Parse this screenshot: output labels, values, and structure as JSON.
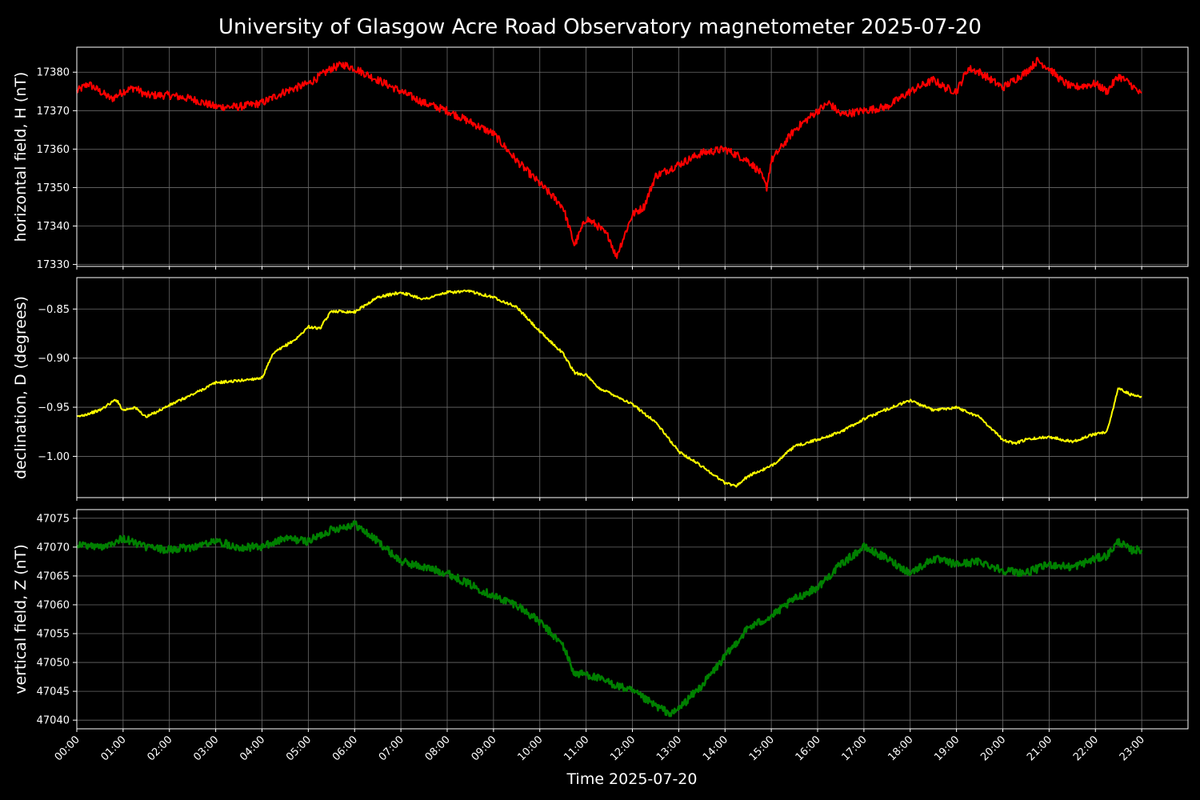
{
  "chart_data": {
    "type": "line",
    "title": "University of Glasgow Acre Road Observatory magnetometer 2025-07-20",
    "xlabel": "Time 2025-07-20",
    "x_tick_labels": [
      "00:00",
      "01:00",
      "02:00",
      "03:00",
      "04:00",
      "05:00",
      "06:00",
      "07:00",
      "08:00",
      "09:00",
      "10:00",
      "11:00",
      "12:00",
      "13:00",
      "14:00",
      "15:00",
      "16:00",
      "17:00",
      "18:00",
      "19:00",
      "20:00",
      "21:00",
      "22:00",
      "23:00"
    ],
    "x_range_hours": [
      0,
      24
    ],
    "grid": true,
    "background": "#000000",
    "panels": [
      {
        "ylabel": "horizontal field, H (nT)",
        "color": "#ff0000",
        "ylim": [
          17329.5,
          17386.5
        ],
        "yticks": [
          17330,
          17340,
          17350,
          17360,
          17370,
          17380
        ],
        "ytick_labels": [
          "17330",
          "17340",
          "17350",
          "17360",
          "17370",
          "17380"
        ],
        "x": [
          0,
          0.25,
          0.5,
          0.75,
          1,
          1.25,
          1.5,
          2,
          2.5,
          3,
          3.5,
          4,
          4.5,
          5,
          5.5,
          5.75,
          6,
          6.5,
          7,
          7.5,
          8,
          8.5,
          9,
          9.5,
          10,
          10.5,
          10.75,
          11,
          11.25,
          11.5,
          11.65,
          12,
          12.25,
          12.5,
          13,
          13.5,
          14,
          14.5,
          14.75,
          14.9,
          15,
          15.5,
          16,
          16.25,
          16.5,
          17,
          17.5,
          18,
          18.5,
          18.75,
          19,
          19.25,
          19.5,
          20,
          20.25,
          20.5,
          20.75,
          21,
          21.25,
          21.5,
          22,
          22.25,
          22.5,
          22.75,
          23
        ],
        "y": [
          17375,
          17377,
          17375,
          17373,
          17375,
          17376,
          17374,
          17374,
          17373,
          17371,
          17371,
          17372,
          17375,
          17377,
          17381,
          17382,
          17381,
          17378,
          17375,
          17372,
          17370,
          17367,
          17364,
          17357,
          17351,
          17345,
          17335,
          17342,
          17340,
          17337,
          17332,
          17343,
          17345,
          17353,
          17356,
          17359,
          17360,
          17357,
          17354,
          17350,
          17357,
          17365,
          17370,
          17372,
          17369,
          17370,
          17371,
          17375,
          17378,
          17376,
          17375,
          17381,
          17380,
          17376,
          17378,
          17380,
          17383,
          17381,
          17378,
          17376,
          17377,
          17375,
          17379,
          17377,
          17374
        ]
      },
      {
        "ylabel": "declination, D (degrees)",
        "color": "#ffff00",
        "ylim": [
          -1.042,
          -0.818
        ],
        "yticks": [
          -1.0,
          -0.95,
          -0.9,
          -0.85
        ],
        "ytick_labels": [
          "−1.00",
          "−0.95",
          "−0.90",
          "−0.85"
        ],
        "x": [
          0,
          0.5,
          0.85,
          1,
          1.25,
          1.5,
          2,
          2.5,
          3,
          3.5,
          4,
          4.25,
          4.75,
          5,
          5.25,
          5.5,
          6,
          6.5,
          7,
          7.5,
          8,
          8.5,
          9,
          9.5,
          10,
          10.5,
          10.75,
          11,
          11.25,
          11.5,
          12,
          12.5,
          13,
          13.5,
          14,
          14.25,
          14.5,
          15,
          15.5,
          16,
          16.5,
          17,
          17.5,
          18,
          18.5,
          19,
          19.5,
          20,
          20.25,
          20.5,
          21,
          21.5,
          22,
          22.25,
          22.5,
          22.75,
          23
        ],
        "y": [
          -0.96,
          -0.953,
          -0.942,
          -0.953,
          -0.95,
          -0.96,
          -0.948,
          -0.937,
          -0.925,
          -0.923,
          -0.92,
          -0.895,
          -0.88,
          -0.868,
          -0.87,
          -0.852,
          -0.853,
          -0.838,
          -0.833,
          -0.84,
          -0.833,
          -0.832,
          -0.838,
          -0.848,
          -0.873,
          -0.895,
          -0.915,
          -0.917,
          -0.93,
          -0.935,
          -0.947,
          -0.965,
          -0.995,
          -1.01,
          -1.027,
          -1.03,
          -1.02,
          -1.01,
          -0.99,
          -0.983,
          -0.975,
          -0.962,
          -0.952,
          -0.943,
          -0.953,
          -0.95,
          -0.96,
          -0.983,
          -0.987,
          -0.983,
          -0.98,
          -0.985,
          -0.977,
          -0.975,
          -0.93,
          -0.937,
          -0.94
        ]
      },
      {
        "ylabel": "vertical field, Z (nT)",
        "color": "#008000",
        "ylim": [
          47038.5,
          47076.5
        ],
        "yticks": [
          47040,
          47045,
          47050,
          47055,
          47060,
          47065,
          47070,
          47075
        ],
        "ytick_labels": [
          "47040",
          "47045",
          "47050",
          "47055",
          "47060",
          "47065",
          "47070",
          "47075"
        ],
        "x": [
          0,
          0.5,
          1,
          1.5,
          2,
          2.5,
          3,
          3.5,
          4,
          4.5,
          5,
          5.5,
          6,
          6.5,
          7,
          7.5,
          8,
          8.5,
          9,
          9.5,
          10,
          10.5,
          10.75,
          11,
          11.5,
          12,
          12.5,
          12.85,
          13,
          13.5,
          14,
          14.5,
          15,
          15.5,
          16,
          16.5,
          17,
          17.5,
          18,
          18.5,
          19,
          19.5,
          20,
          20.5,
          21,
          21.5,
          22,
          22.25,
          22.5,
          22.75,
          23
        ],
        "y": [
          47070.5,
          47070,
          47071.5,
          47070,
          47069.5,
          47070,
          47071,
          47070,
          47070,
          47071.5,
          47071,
          47073,
          47074,
          47071,
          47067.5,
          47066.5,
          47065.5,
          47063.5,
          47061.5,
          47060,
          47057,
          47053,
          47048,
          47048,
          47046.5,
          47045,
          47042.5,
          47041,
          47042,
          47046,
          47051,
          47056,
          47058,
          47061,
          47063,
          47067,
          47070,
          47068,
          47065.5,
          47068,
          47067,
          47067.5,
          47066,
          47065.5,
          47067,
          47066.5,
          47068,
          47068.5,
          47071,
          47069.5,
          47069.5
        ]
      }
    ]
  }
}
